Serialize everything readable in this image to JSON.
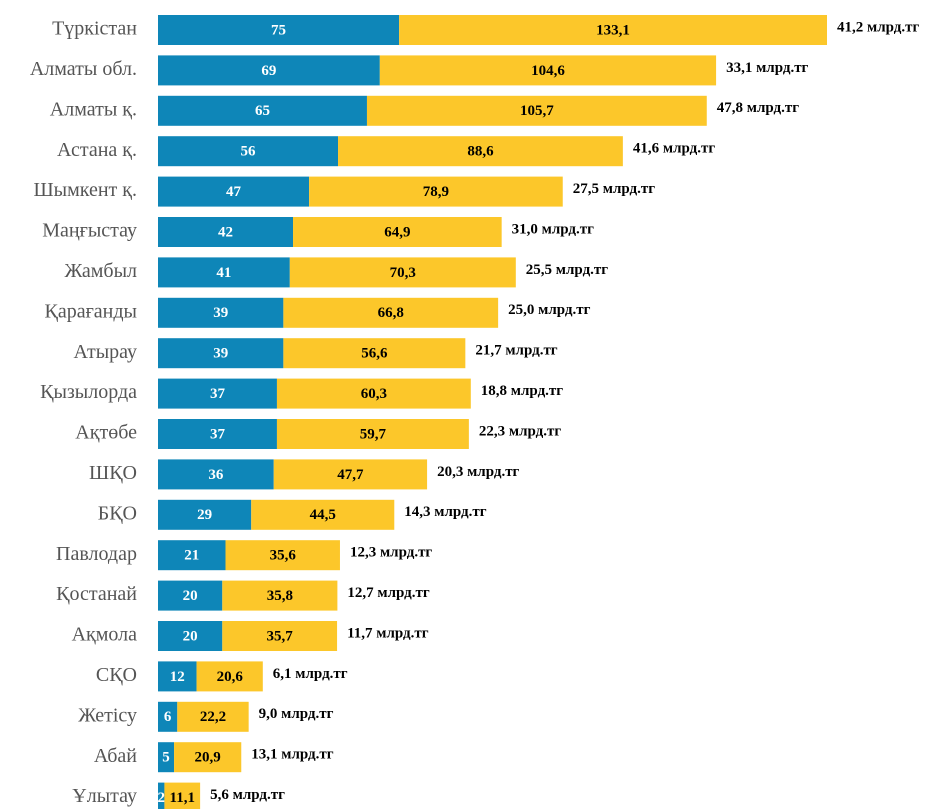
{
  "chart_data": {
    "type": "stacked_barh",
    "categories": [
      "Түркістан",
      "Алматы обл.",
      "Алматы қ.",
      "Астана қ.",
      "Шымкент қ.",
      "Маңғыстау",
      "Жамбыл",
      "Қарағанды",
      "Атырау",
      "Қызылорда",
      "Ақтөбе",
      "ШҚО",
      "БҚО",
      "Павлодар",
      "Қостанай",
      "Ақмола",
      "СҚО",
      "Жетісу",
      "Абай",
      "Ұлытау"
    ],
    "series": [
      {
        "color": "#0e86b8",
        "values": [
          75,
          69,
          65,
          56,
          47,
          42,
          41,
          39,
          39,
          37,
          37,
          36,
          29,
          21,
          20,
          20,
          12,
          6,
          5,
          2
        ]
      },
      {
        "color": "#fcc72a",
        "values": [
          133.1,
          104.6,
          105.7,
          88.6,
          78.9,
          64.9,
          70.3,
          66.8,
          56.6,
          60.3,
          59.7,
          47.7,
          44.5,
          35.6,
          35.8,
          35.7,
          20.6,
          22.2,
          20.9,
          11.1
        ],
        "value_labels": [
          "133,1",
          "104,6",
          "105,7",
          "88,6",
          "78,9",
          "64,9",
          "70,3",
          "66,8",
          "56,6",
          "60,3",
          "59,7",
          "47,7",
          "44,5",
          "35,6",
          "35,8",
          "35,7",
          "20,6",
          "22,2",
          "20,9",
          "11,1"
        ]
      }
    ],
    "annotations": [
      "41,2 млрд.тг",
      "33,1 млрд.тг",
      "47,8 млрд.тг",
      "41,6 млрд.тг",
      "27,5 млрд.тг",
      "31,0 млрд.тг",
      "25,5 млрд.тг",
      "25,0 млрд.тг",
      "21,7 млрд.тг",
      "18,8 млрд.тг",
      "22,3 млрд.тг",
      "20,3 млрд.тг",
      "14,3 млрд.тг",
      "12,3 млрд.тг",
      "12,7 млрд.тг",
      "11,7 млрд.тг",
      "6,1 млрд.тг",
      "9,0 млрд.тг",
      "13,1 млрд.тг",
      "5,6 млрд.тг"
    ]
  }
}
